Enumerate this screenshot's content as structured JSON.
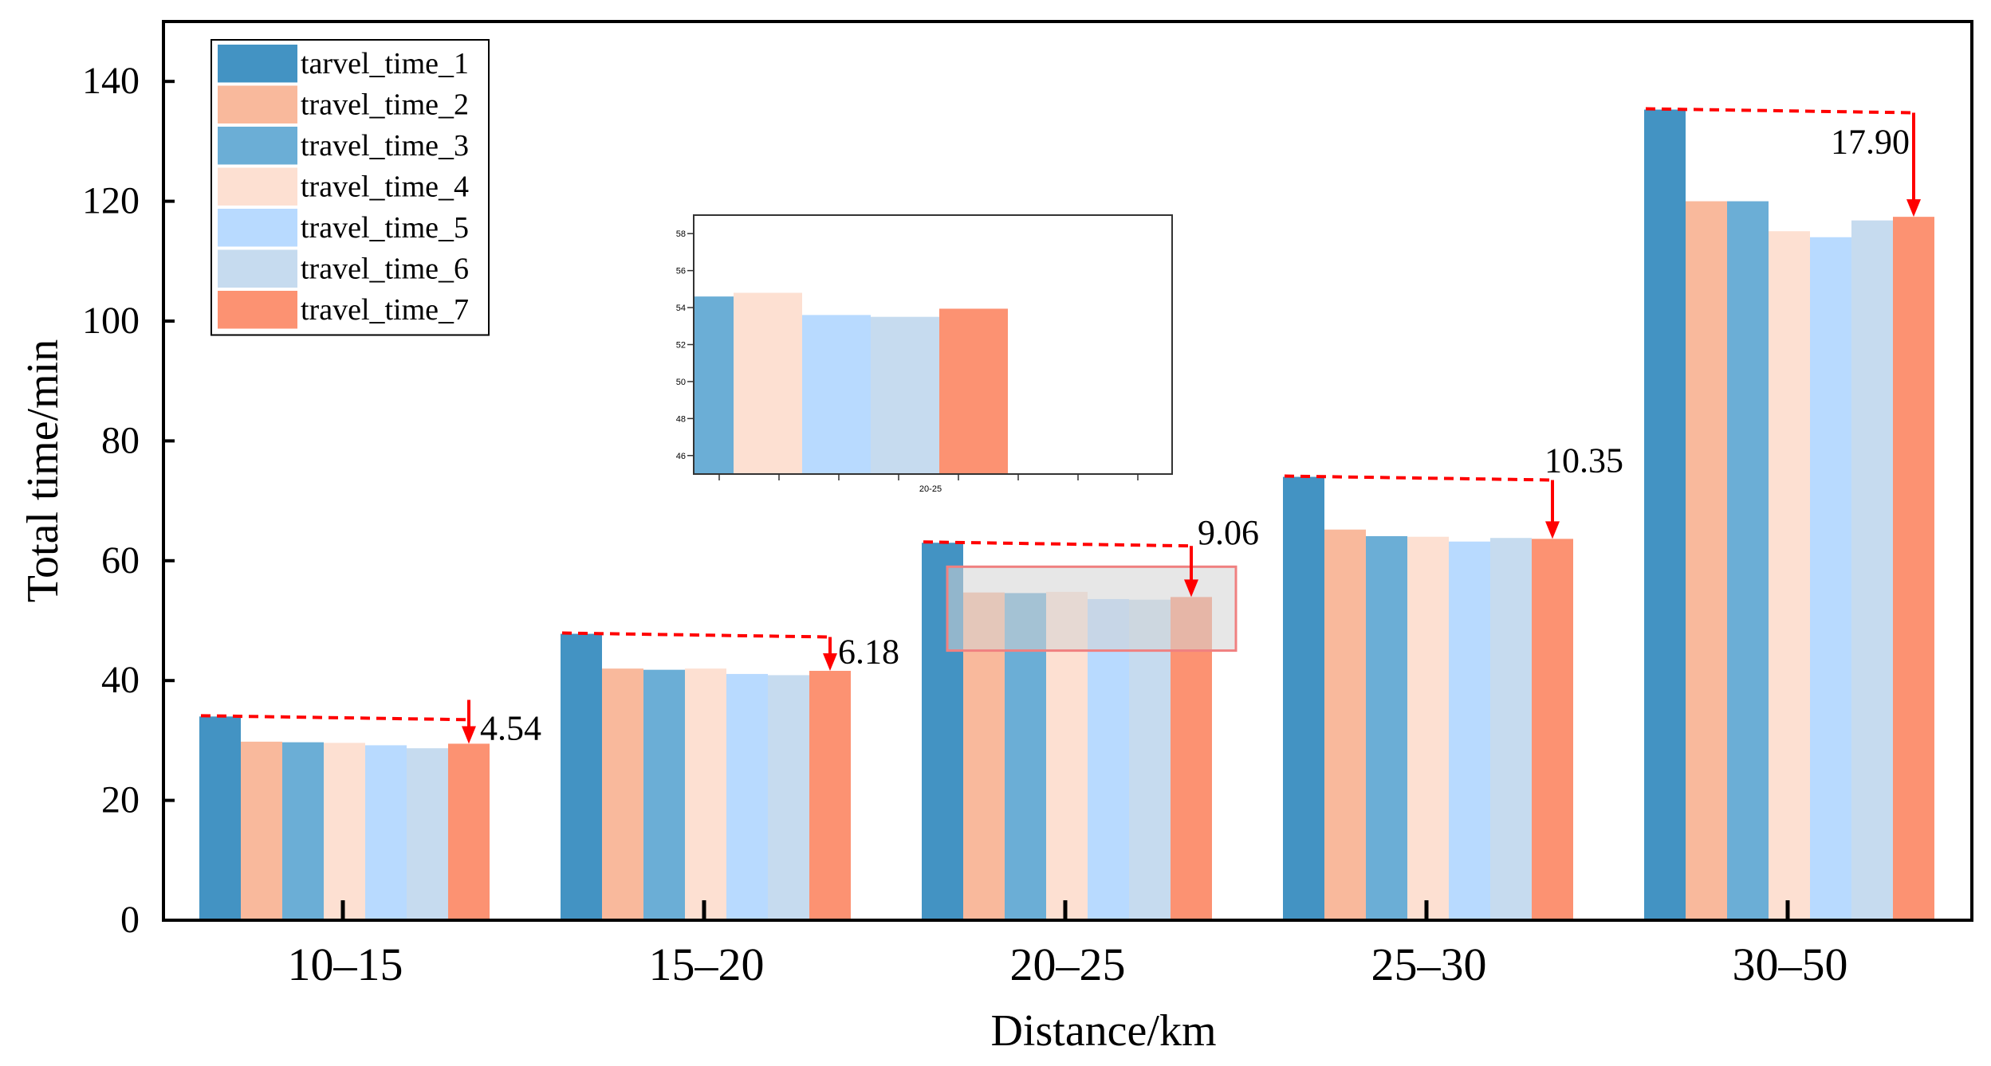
{
  "chart_data": {
    "type": "bar",
    "title": "",
    "xlabel": "Distance/km",
    "ylabel": "Total time/min",
    "ylim": [
      0,
      150
    ],
    "yticks": [
      0,
      20,
      40,
      60,
      80,
      100,
      120,
      140
    ],
    "categories": [
      "10–15",
      "15–20",
      "20–25",
      "25–30",
      "30–50"
    ],
    "series": [
      {
        "name": "tarvel_time_1",
        "color": "#4393c3",
        "values": [
          34.0,
          47.8,
          63.0,
          74.0,
          135.3
        ]
      },
      {
        "name": "travel_time_2",
        "color": "#f9b99c",
        "values": [
          29.8,
          42.0,
          54.7,
          65.2,
          120.0
        ]
      },
      {
        "name": "travel_time_3",
        "color": "#6baed6",
        "values": [
          29.7,
          41.8,
          54.6,
          64.1,
          120.0
        ]
      },
      {
        "name": "travel_time_4",
        "color": "#fde0d2",
        "values": [
          29.6,
          42.0,
          54.8,
          64.0,
          115.0
        ]
      },
      {
        "name": "travel_time_5",
        "color": "#b8daff",
        "values": [
          29.2,
          41.1,
          53.6,
          63.2,
          114.0
        ]
      },
      {
        "name": "travel_time_6",
        "color": "#c6dbef",
        "values": [
          28.7,
          40.9,
          53.5,
          63.8,
          116.8
        ]
      },
      {
        "name": "travel_time_7",
        "color": "#fc9272",
        "values": [
          29.46,
          41.62,
          53.94,
          63.65,
          117.4
        ]
      }
    ],
    "annotations": [
      {
        "category": "10–15",
        "label": "4.54",
        "from": 34.0,
        "to": 29.46
      },
      {
        "category": "15–20",
        "label": "6.18",
        "from": 47.8,
        "to": 41.62
      },
      {
        "category": "20–25",
        "label": "9.06",
        "from": 63.0,
        "to": 53.94
      },
      {
        "category": "25–30",
        "label": "10.35",
        "from": 74.0,
        "to": 63.65
      },
      {
        "category": "30–50",
        "label": "17.90",
        "from": 135.3,
        "to": 117.4
      }
    ],
    "legend_position": "top-left",
    "inset": {
      "category": "20–25",
      "xtick_label": "20-25",
      "ylim": [
        45,
        59
      ],
      "yticks": [
        46,
        48,
        50,
        52,
        54,
        56,
        58
      ],
      "highlight_range": [
        45,
        59
      ]
    }
  },
  "colors": {
    "arrow": "#ff0000",
    "highlight_fill": "#d3d3d3",
    "highlight_stroke": "#f08080"
  }
}
